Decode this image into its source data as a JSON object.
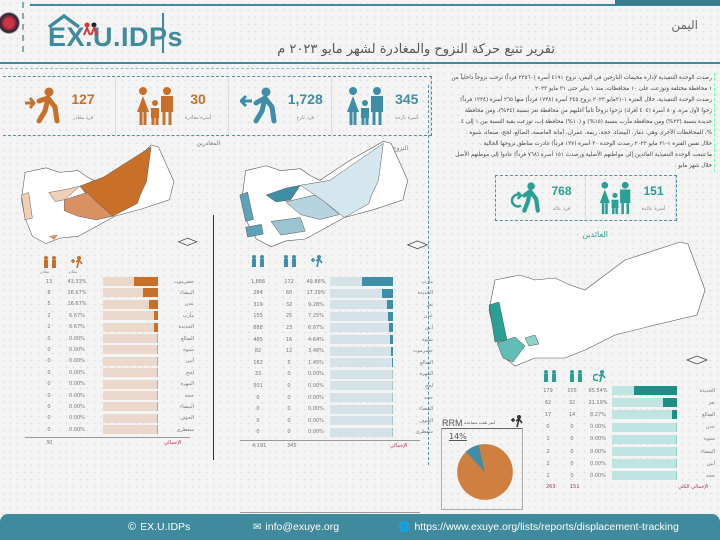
{
  "header": {
    "logo_text": "EX.U.IDPs",
    "country": "اليمن",
    "title": "تقرير تتبع حركة النزوح والمغادرة لشهر مايو ٢٠٢٣ م"
  },
  "intro": {
    "lines": [
      "رصدت الوحدة التنفيذية لإدارة مخيمات النازحين في اليمن، نزوح ٤١٩١ أسرة (٢٣٥٦٠ فرداً) نزحت نزوحاً داخلياً من",
      "١ محافظة مختلفة وتوزعت على ١٠ محافظات، منذ ١ يناير حتى ٣١ مايو ٢٠٢٣ .",
      "رصدت الوحدة التنفيذية، خلال الفترة ١-٣١مايو ٢٠٢٣ نزوح ٣٤٥ أسرة (١٧٢٨ فرداً) منها ٢٦٥ أسرة (١٣٢٤ فرداً)",
      "زحوا لأول مرة، و٨٠ أسرة (٤٠٤ أفراد) نزحوا نزوحاً ثانياً أغلبهم من محافظة تعز بنسبة (٢٤%)، ومن محافظة",
      "حديدة بنسبة (٢٣%) ومن محافظة مأرب بنسبة (١٥%) و (١٠%) محافظة إب، توزعت بقية النسبة بين ١ إلى ٤",
      "%، للمحافظات الأخرى وهي: ذمار، البيضاء، حجة، ريمة، عمران، أمانة العاصمة، الضالع، لحج، صنعاء، شبوة .",
      "خلال نفس الفترة ١-٣١ مايو ٢٠٢٣ رصدت الوحدة ٣٠ أسرة (١٢٧ فرداً) غادرت مناطق نزوحها الحالية .",
      "ما تتبعت الوحدة التنفيذية العائدين إلى مواطنهم الأصلية ورصدت ١٥١ أسرة (٧٦٨ فرداً) عادوا إلى موطنهم الأصل",
      "خلال شهر مايو ."
    ]
  },
  "departed": {
    "section_label": "المغادرين",
    "individuals": {
      "value": "127",
      "label": "فرد مغادر",
      "icon": "traveler-plane-icon"
    },
    "families": {
      "value": "30",
      "label": "أسرة مغادرة",
      "icon": "family-icon"
    },
    "col_headers": [
      "مغادر",
      "مغادر"
    ],
    "rows": [
      {
        "gov": "حضرموت",
        "pct": "43.33%",
        "count": "13",
        "bar": 43.33
      },
      {
        "gov": "البيضاء",
        "pct": "26.67%",
        "count": "8",
        "bar": 26.67
      },
      {
        "gov": "عدن",
        "pct": "16.67%",
        "count": "5",
        "bar": 16.67
      },
      {
        "gov": "مأرب",
        "pct": "6.67%",
        "count": "2",
        "bar": 6.67
      },
      {
        "gov": "الحديدة",
        "pct": "6.67%",
        "count": "2",
        "bar": 6.67
      },
      {
        "gov": "الضالع",
        "pct": "0.00%",
        "count": "0",
        "bar": 0
      },
      {
        "gov": "شبوة",
        "pct": "0.00%",
        "count": "0",
        "bar": 0
      },
      {
        "gov": "أبين",
        "pct": "0.00%",
        "count": "0",
        "bar": 0
      },
      {
        "gov": "لحج",
        "pct": "0.00%",
        "count": "0",
        "bar": 0
      },
      {
        "gov": "المهرة",
        "pct": "0.00%",
        "count": "0",
        "bar": 0
      },
      {
        "gov": "حجة",
        "pct": "0.00%",
        "count": "0",
        "bar": 0
      },
      {
        "gov": "البيضاء",
        "pct": "0.00%",
        "count": "0",
        "bar": 0
      },
      {
        "gov": "الجوف",
        "pct": "0.00%",
        "count": "0",
        "bar": 0
      },
      {
        "gov": "سقطرى",
        "pct": "0.00%",
        "count": "0",
        "bar": 0
      }
    ],
    "total_label": "الإجمالي",
    "total": "30"
  },
  "displaced": {
    "section_label": "النزوح الجديد",
    "individuals": {
      "value": "1,728",
      "label": "فرد نازح",
      "icon": "fleeing-person-icon"
    },
    "families": {
      "value": "345",
      "label": "أسرة نازحة",
      "icon": "family-icon"
    },
    "rows": [
      {
        "gov": "مأرب",
        "pct": "49.86%",
        "families": "172",
        "total": "1,866",
        "bar": 49.86
      },
      {
        "gov": "الحديدة",
        "pct": "17.39%",
        "families": "60",
        "total": "284",
        "bar": 17.39
      },
      {
        "gov": "تعز",
        "pct": "9.28%",
        "families": "32",
        "total": "319",
        "bar": 9.28
      },
      {
        "gov": "عدن",
        "pct": "7.25%",
        "families": "25",
        "total": "155",
        "bar": 7.25
      },
      {
        "gov": "أبين",
        "pct": "6.67%",
        "families": "23",
        "total": "688",
        "bar": 6.67
      },
      {
        "gov": "شبوة",
        "pct": "4.64%",
        "families": "16",
        "total": "485",
        "bar": 4.64
      },
      {
        "gov": "حضرموت",
        "pct": "3.48%",
        "families": "12",
        "total": "82",
        "bar": 3.48
      },
      {
        "gov": "الضالع",
        "pct": "1.45%",
        "families": "5",
        "total": "182",
        "bar": 1.45
      },
      {
        "gov": "المهرة",
        "pct": "0.00%",
        "families": "0",
        "total": "33",
        "bar": 0
      },
      {
        "gov": "لحج",
        "pct": "0.00%",
        "families": "0",
        "total": "501",
        "bar": 0
      },
      {
        "gov": "حجة",
        "pct": "0.00%",
        "families": "0",
        "total": "0",
        "bar": 0
      },
      {
        "gov": "البيضاء",
        "pct": "0.00%",
        "families": "0",
        "total": "0",
        "bar": 0
      },
      {
        "gov": "الجوف",
        "pct": "0.00%",
        "families": "0",
        "total": "0",
        "bar": 0
      },
      {
        "gov": "سقطرى",
        "pct": "0.00%",
        "families": "0",
        "total": "0",
        "bar": 0
      }
    ],
    "total_label": "الإجمالي",
    "total_individuals": "4,191",
    "total_families": "345"
  },
  "returnees": {
    "section_label": "العائدين",
    "individuals": {
      "value": "768",
      "label": "فرد عائد",
      "icon": "returning-person-icon"
    },
    "families": {
      "value": "151",
      "label": "أسرة عائدة",
      "icon": "family-icon"
    },
    "rows": [
      {
        "gov": "الحديدة",
        "pct": "65.54%",
        "families": "105",
        "total": "179",
        "bar": 65.54
      },
      {
        "gov": "تعز",
        "pct": "21.19%",
        "families": "32",
        "total": "62",
        "bar": 21.19
      },
      {
        "gov": "الضالع",
        "pct": "8.27%",
        "families": "14",
        "total": "17",
        "bar": 8.27
      },
      {
        "gov": "عدن",
        "pct": "0.00%",
        "families": "0",
        "total": "0",
        "bar": 0
      },
      {
        "gov": "شبوة",
        "pct": "0.00%",
        "families": "0",
        "total": "1",
        "bar": 0
      },
      {
        "gov": "البيضاء",
        "pct": "0.00%",
        "families": "0",
        "total": "2",
        "bar": 0
      },
      {
        "gov": "أبين",
        "pct": "0.00%",
        "families": "0",
        "total": "2",
        "bar": 0
      },
      {
        "gov": "حجة",
        "pct": "0.00%",
        "families": "0",
        "total": "1",
        "bar": 0
      }
    ],
    "total_label": "الإجمالي الكلي",
    "total_individuals": "263",
    "total_families": "151"
  },
  "rrm": {
    "title": "RRM",
    "subtitle": "أسر تلقت مساعدة",
    "pct_label": "14%",
    "chart_data": {
      "type": "pie",
      "categories": [
        "RRM",
        "Other"
      ],
      "values": [
        14,
        86
      ]
    }
  },
  "colors": {
    "brand": "#3f8a9c",
    "departed": "#c8702a",
    "displaced": "#3d8ea6",
    "returnees": "#2aa095",
    "total_label": "#b3355a"
  },
  "footer": {
    "copyright": "EX.U.IDPs",
    "email": "info@exuye.org",
    "url": "https://www.exuye.org/lists/reports/displacement-tracking"
  }
}
